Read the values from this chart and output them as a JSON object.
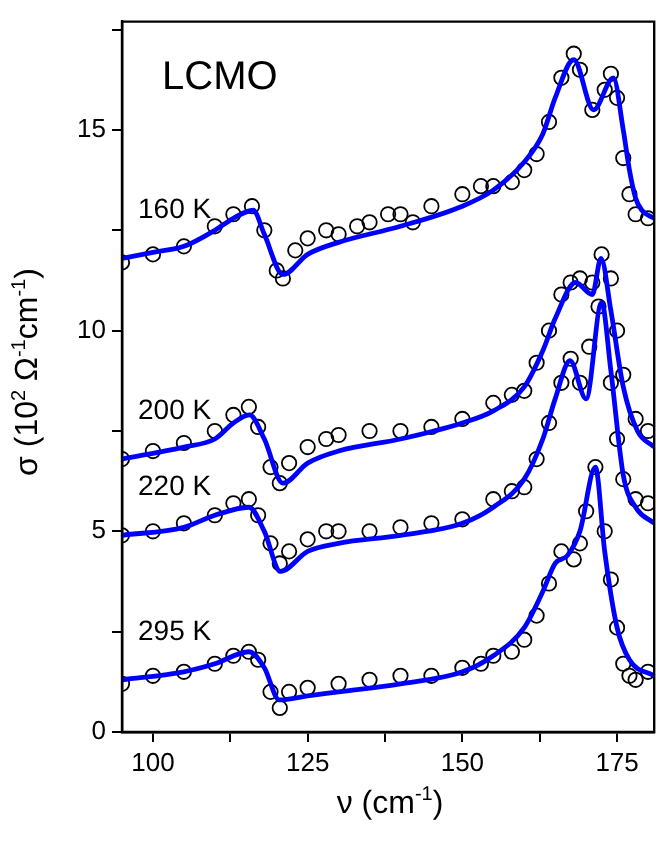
{
  "chart_data": {
    "type": "scatter",
    "xlabel": "ν (cm$^{-1}$)",
    "ylabel": "σ (10$^{2}$ Ω$^{-1}$cm$^{-1}$)",
    "annotations": [
      "LCMO"
    ],
    "xlim": [
      95,
      181
    ],
    "ylim": [
      0,
      17.7
    ],
    "xticks": [
      100,
      {
        "value": 112.5,
        "label": null
      },
      125,
      {
        "value": 137.5,
        "label": null
      },
      150,
      {
        "value": 162.5,
        "label": null
      },
      175
    ],
    "yticks": [
      0,
      {
        "value": 2.5,
        "label": null
      },
      5,
      {
        "value": 7.5,
        "label": null
      },
      10,
      {
        "value": 12.5,
        "label": null
      },
      15,
      {
        "value": 17.5,
        "label": null
      }
    ],
    "grid": false,
    "legend": false,
    "series": [
      {
        "marker": "circle",
        "color": "#000000",
        "x": [
          95,
          100,
          105,
          110,
          113,
          116,
          118,
          120,
          121,
          123,
          125,
          128,
          130,
          133,
          135,
          138,
          140,
          142,
          145,
          150,
          153,
          155,
          158,
          160,
          162,
          164,
          166,
          168,
          169,
          171,
          173,
          174,
          175,
          176,
          177,
          178,
          180
        ],
        "values": [
          11.7,
          11.9,
          12.1,
          12.6,
          12.9,
          13.1,
          12.5,
          11.5,
          11.3,
          12.0,
          12.3,
          12.5,
          12.4,
          12.6,
          12.7,
          12.9,
          12.9,
          12.7,
          13.1,
          13.4,
          13.6,
          13.6,
          13.7,
          14.0,
          14.4,
          15.2,
          16.3,
          16.9,
          16.5,
          15.5,
          16.0,
          16.4,
          15.8,
          14.3,
          13.4,
          12.9,
          12.8
        ]
      },
      {
        "marker": "circle",
        "color": "#000000",
        "x": [
          95,
          100,
          105,
          110,
          113,
          115.5,
          117,
          119,
          120.5,
          122,
          125,
          128,
          130,
          135,
          140,
          145,
          150,
          155,
          158,
          160,
          162,
          164,
          166,
          167.5,
          169,
          171,
          172.5,
          174,
          175,
          176,
          178,
          180
        ],
        "values": [
          6.8,
          7.0,
          7.2,
          7.5,
          7.9,
          8.1,
          7.6,
          6.6,
          6.2,
          6.7,
          7.1,
          7.3,
          7.4,
          7.5,
          7.5,
          7.6,
          7.8,
          8.2,
          8.4,
          8.5,
          9.2,
          10.0,
          10.9,
          11.2,
          11.3,
          11.2,
          11.9,
          11.3,
          10.0,
          8.9,
          7.8,
          7.5
        ]
      },
      {
        "marker": "circle",
        "color": "#000000",
        "x": [
          95,
          100,
          105,
          110,
          113,
          115.5,
          117,
          119,
          120.5,
          122,
          125,
          128,
          130,
          135,
          140,
          145,
          150,
          155,
          158,
          160,
          162,
          164,
          166,
          167.5,
          169,
          170.5,
          172,
          173,
          174,
          175,
          176,
          178,
          180
        ],
        "values": [
          4.9,
          5.0,
          5.2,
          5.4,
          5.7,
          5.8,
          5.4,
          4.7,
          4.2,
          4.5,
          4.8,
          5.0,
          5.0,
          5.0,
          5.1,
          5.2,
          5.3,
          5.8,
          6.0,
          6.1,
          6.8,
          7.7,
          8.7,
          9.3,
          8.7,
          9.6,
          10.6,
          null,
          8.7,
          7.3,
          6.3,
          5.8,
          5.7
        ]
      },
      {
        "marker": "circle",
        "color": "#000000",
        "x": [
          95,
          100,
          105,
          110,
          113,
          115.5,
          117,
          119,
          120.5,
          122,
          125,
          130,
          135,
          140,
          145,
          150,
          153,
          155,
          158,
          160,
          162,
          164,
          166,
          168,
          169,
          170,
          171.5,
          173,
          174,
          175,
          176,
          177,
          178,
          180
        ],
        "values": [
          1.2,
          1.4,
          1.5,
          1.7,
          1.9,
          2.0,
          1.8,
          1.0,
          0.6,
          1.0,
          1.1,
          1.2,
          1.3,
          1.4,
          1.4,
          1.6,
          1.7,
          1.9,
          2.0,
          2.3,
          2.9,
          3.7,
          4.5,
          4.3,
          4.7,
          5.5,
          6.6,
          5.0,
          3.8,
          2.6,
          1.7,
          1.4,
          1.3,
          1.5
        ]
      },
      {
        "type": "line",
        "name": "160 K",
        "marker": "none",
        "color": "#0000ff",
        "x": [
          95,
          100,
          105,
          110,
          113,
          116.2,
          118,
          121,
          125,
          130,
          140,
          150,
          155,
          160,
          163,
          165,
          168,
          171.2,
          174.4,
          176,
          177,
          178,
          179,
          181
        ],
        "values": [
          11.8,
          11.95,
          12.1,
          12.5,
          12.8,
          13.0,
          12.4,
          11.4,
          11.9,
          12.2,
          12.6,
          13.1,
          13.5,
          14.2,
          14.9,
          15.8,
          16.75,
          15.5,
          16.3,
          15.0,
          14.0,
          13.3,
          13.0,
          12.8
        ]
      },
      {
        "type": "line",
        "name": "200 K",
        "marker": "none",
        "color": "#0000ff",
        "x": [
          95,
          105,
          110,
          113,
          115.6,
          118,
          121,
          125,
          130,
          140,
          150,
          155,
          160,
          163,
          165,
          168.3,
          171,
          172.4,
          174,
          176,
          178.3,
          181
        ],
        "values": [
          6.8,
          7.1,
          7.3,
          7.7,
          7.9,
          7.3,
          6.2,
          6.7,
          7.0,
          7.3,
          7.7,
          8.0,
          8.6,
          9.5,
          10.3,
          11.2,
          10.9,
          11.8,
          10.5,
          8.6,
          7.5,
          7.1
        ]
      },
      {
        "type": "line",
        "name": "220 K",
        "marker": "none",
        "color": "#0000ff",
        "x": [
          95,
          105,
          110,
          115.5,
          118,
          120.6,
          125,
          130,
          140,
          150,
          155,
          160,
          163,
          165,
          167.4,
          170,
          172.5,
          174,
          176,
          178,
          181
        ],
        "values": [
          4.9,
          5.1,
          5.4,
          5.6,
          5.0,
          4.0,
          4.5,
          4.7,
          4.9,
          5.2,
          5.6,
          6.3,
          7.3,
          8.3,
          9.25,
          8.3,
          10.7,
          9.0,
          6.4,
          5.6,
          5.2
        ]
      },
      {
        "type": "line",
        "name": "295 K",
        "marker": "none",
        "color": "#0000ff",
        "x": [
          95,
          105,
          110,
          115.5,
          118,
          120.4,
          125,
          130,
          140,
          150,
          155,
          160,
          163,
          165,
          167,
          169,
          171.5,
          173,
          175,
          177,
          181
        ],
        "values": [
          1.3,
          1.5,
          1.7,
          2.0,
          1.6,
          0.8,
          0.9,
          1.0,
          1.2,
          1.5,
          1.9,
          2.6,
          3.5,
          4.2,
          4.4,
          5.0,
          6.6,
          4.5,
          2.6,
          1.8,
          1.4
        ]
      }
    ]
  }
}
